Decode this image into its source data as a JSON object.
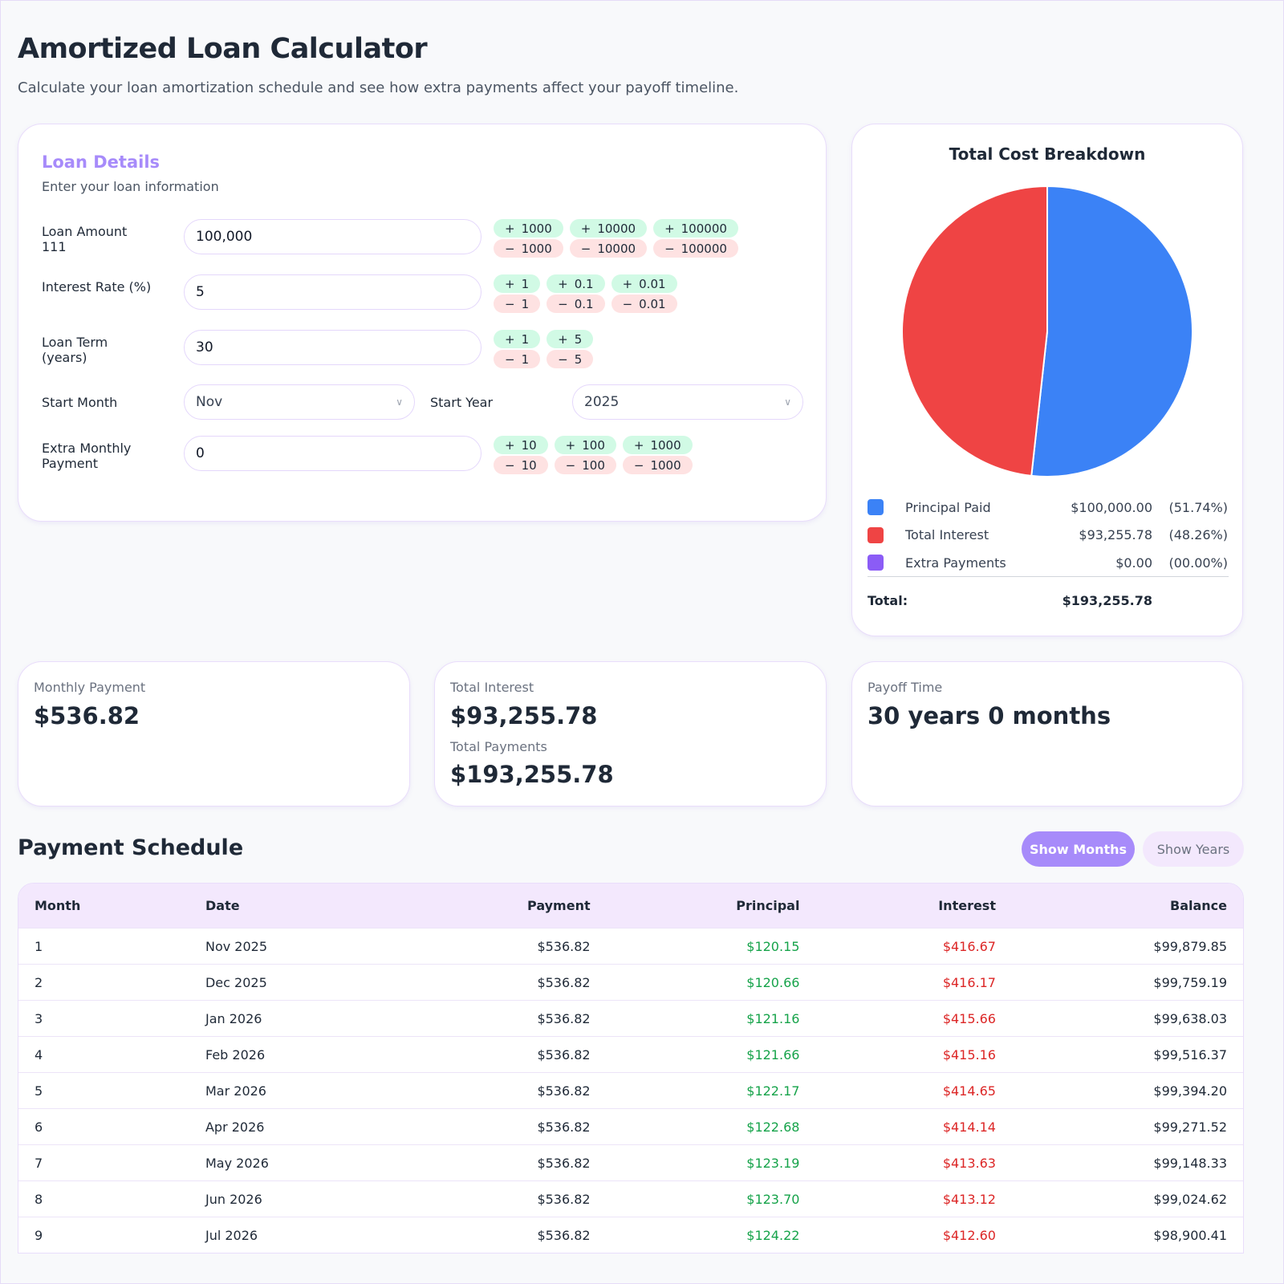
{
  "header": {
    "title": "Amortized Loan Calculator",
    "subtitle": "Calculate your loan amortization schedule and see how extra payments affect your payoff timeline."
  },
  "loan_details": {
    "title": "Loan Details",
    "subtitle": "Enter your loan information",
    "loan_amount": {
      "label": "Loan Amount 111",
      "value": "100,000",
      "steps": [
        "1000",
        "10000",
        "100000"
      ]
    },
    "interest_rate": {
      "label": "Interest Rate (%)",
      "value": "5",
      "steps": [
        "1",
        "0.1",
        "0.01"
      ]
    },
    "loan_term": {
      "label": "Loan Term (years)",
      "value": "30",
      "steps": [
        "1",
        "5"
      ]
    },
    "start_month": {
      "label": "Start Month",
      "value": "Nov"
    },
    "start_year": {
      "label": "Start Year",
      "value": "2025"
    },
    "extra_payment": {
      "label": "Extra Monthly Payment",
      "value": "0",
      "steps": [
        "10",
        "100",
        "1000"
      ]
    },
    "plus_icon": "+",
    "minus_icon": "−"
  },
  "breakdown": {
    "title": "Total Cost Breakdown",
    "items": [
      {
        "label": "Principal Paid",
        "amount": "$100,000.00",
        "pct": "(51.74%)",
        "value": 51.74,
        "color": "#3b82f6"
      },
      {
        "label": "Total Interest",
        "amount": "$93,255.78",
        "pct": "(48.26%)",
        "value": 48.26,
        "color": "#ef4444"
      },
      {
        "label": "Extra Payments",
        "amount": "$0.00",
        "pct": "(00.00%)",
        "value": 0,
        "color": "#8b5cf6"
      }
    ],
    "total_label": "Total:",
    "total": "$193,255.78"
  },
  "stats": {
    "monthly_label": "Monthly Payment",
    "monthly": "$536.82",
    "interest_label": "Total Interest",
    "interest": "$93,255.78",
    "payments_label": "Total Payments",
    "payments": "$193,255.78",
    "payoff_label": "Payoff Time",
    "payoff": "30 years 0 months"
  },
  "schedule": {
    "title": "Payment Schedule",
    "show_months": "Show Months",
    "show_years": "Show Years",
    "columns": [
      "Month",
      "Date",
      "Payment",
      "Principal",
      "Interest",
      "Balance"
    ],
    "rows": [
      [
        "1",
        "Nov 2025",
        "$536.82",
        "$120.15",
        "$416.67",
        "$99,879.85"
      ],
      [
        "2",
        "Dec 2025",
        "$536.82",
        "$120.66",
        "$416.17",
        "$99,759.19"
      ],
      [
        "3",
        "Jan 2026",
        "$536.82",
        "$121.16",
        "$415.66",
        "$99,638.03"
      ],
      [
        "4",
        "Feb 2026",
        "$536.82",
        "$121.66",
        "$415.16",
        "$99,516.37"
      ],
      [
        "5",
        "Mar 2026",
        "$536.82",
        "$122.17",
        "$414.65",
        "$99,394.20"
      ],
      [
        "6",
        "Apr 2026",
        "$536.82",
        "$122.68",
        "$414.14",
        "$99,271.52"
      ],
      [
        "7",
        "May 2026",
        "$536.82",
        "$123.19",
        "$413.63",
        "$99,148.33"
      ],
      [
        "8",
        "Jun 2026",
        "$536.82",
        "$123.70",
        "$413.12",
        "$99,024.62"
      ],
      [
        "9",
        "Jul 2026",
        "$536.82",
        "$124.22",
        "$412.60",
        "$98,900.41"
      ]
    ]
  }
}
